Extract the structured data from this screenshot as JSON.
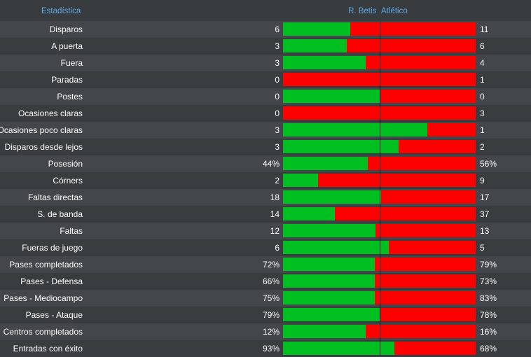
{
  "header": {
    "stat_label": "Estadística",
    "home_team": "R. Betis",
    "away_team": "Atlético"
  },
  "colors": {
    "home": "#00c021",
    "away": "#ff0000",
    "header_text": "#5fa8e8"
  },
  "stats": [
    {
      "label": "Disparos",
      "home": "6",
      "away": "11",
      "home_share": 0.35
    },
    {
      "label": "A puerta",
      "home": "3",
      "away": "6",
      "home_share": 0.33
    },
    {
      "label": "Fuera",
      "home": "3",
      "away": "4",
      "home_share": 0.43
    },
    {
      "label": "Paradas",
      "home": "0",
      "away": "1",
      "home_share": 0
    },
    {
      "label": "Postes",
      "home": "0",
      "away": "0",
      "home_share": 0.5
    },
    {
      "label": "Ocasiones claras",
      "home": "0",
      "away": "3",
      "home_share": 0
    },
    {
      "label": "Ocasiones poco claras",
      "home": "3",
      "away": "1",
      "home_share": 0.75
    },
    {
      "label": "Disparos desde lejos",
      "home": "3",
      "away": "2",
      "home_share": 0.6
    },
    {
      "label": "Posesión",
      "home": "44%",
      "away": "56%",
      "home_share": 0.44
    },
    {
      "label": "Córners",
      "home": "2",
      "away": "9",
      "home_share": 0.18
    },
    {
      "label": "Faltas directas",
      "home": "18",
      "away": "17",
      "home_share": 0.51
    },
    {
      "label": "S. de banda",
      "home": "14",
      "away": "37",
      "home_share": 0.27
    },
    {
      "label": "Faltas",
      "home": "12",
      "away": "13",
      "home_share": 0.48
    },
    {
      "label": "Fueras de juego",
      "home": "6",
      "away": "5",
      "home_share": 0.55
    },
    {
      "label": "Pases completados",
      "home": "72%",
      "away": "79%",
      "home_share": 0.477
    },
    {
      "label": "Pases - Defensa",
      "home": "66%",
      "away": "73%",
      "home_share": 0.475
    },
    {
      "label": "Pases - Mediocampo",
      "home": "75%",
      "away": "83%",
      "home_share": 0.475
    },
    {
      "label": "Pases - Ataque",
      "home": "79%",
      "away": "78%",
      "home_share": 0.503
    },
    {
      "label": "Centros completados",
      "home": "12%",
      "away": "16%",
      "home_share": 0.43
    },
    {
      "label": "Entradas con éxito",
      "home": "93%",
      "away": "68%",
      "home_share": 0.578
    }
  ]
}
